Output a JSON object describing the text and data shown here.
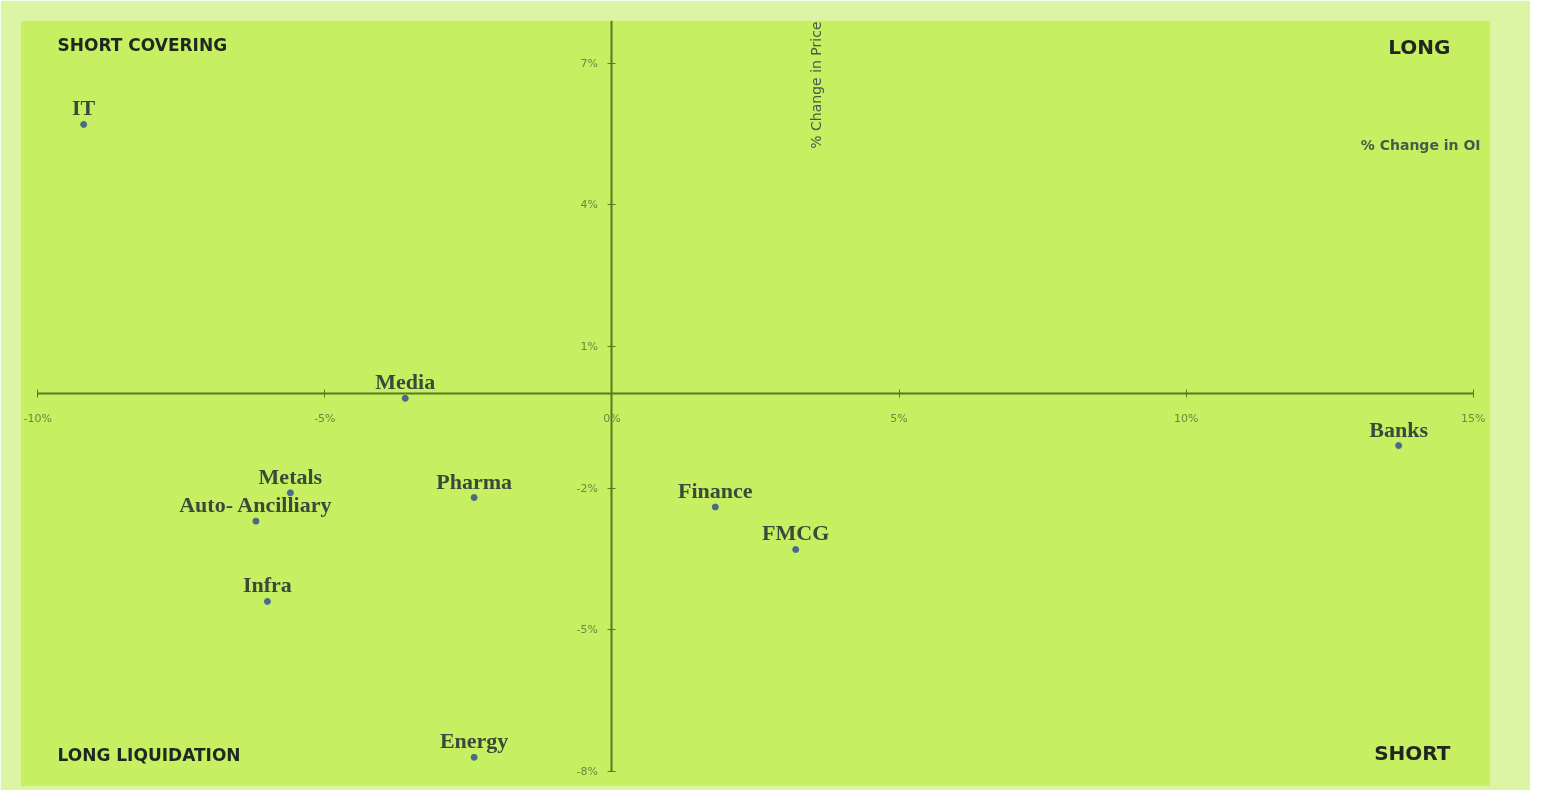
{
  "chart_data": {
    "type": "scatter",
    "xlabel": "% Change in OI",
    "ylabel": "% Change in Price",
    "annotations": [
      "SHORT COVERING",
      "LONG",
      "LONG LIQUIDATION",
      "SHORT"
    ],
    "series": [
      {
        "name": "IT",
        "color": "#4a6a8a",
        "x": [
          -9.2
        ],
        "values": [
          5.7
        ]
      },
      {
        "name": "Media",
        "color": "#4a6a8a",
        "x": [
          -3.6
        ],
        "values": [
          -0.1
        ]
      },
      {
        "name": "Metals",
        "color": "#4a6a8a",
        "x": [
          -5.6
        ],
        "values": [
          -2.1
        ]
      },
      {
        "name": "Pharma",
        "color": "#4a6a8a",
        "x": [
          -2.4
        ],
        "values": [
          -2.2
        ]
      },
      {
        "name": "Auto- Ancilliary",
        "color": "#4a6a8a",
        "x": [
          -6.2
        ],
        "values": [
          -2.7
        ]
      },
      {
        "name": "Infra",
        "color": "#4a6a8a",
        "x": [
          -6.0
        ],
        "values": [
          -4.4
        ]
      },
      {
        "name": "Energy",
        "color": "#4a6a8a",
        "x": [
          -2.4
        ],
        "values": [
          -7.7
        ]
      },
      {
        "name": "Finance",
        "color": "#4a6a8a",
        "x": [
          1.8
        ],
        "values": [
          -2.4
        ]
      },
      {
        "name": "FMCG",
        "color": "#4a6a8a",
        "x": [
          3.2
        ],
        "values": [
          -3.3
        ]
      },
      {
        "name": "Banks",
        "color": "#4a6a8a",
        "x": [
          13.7
        ],
        "values": [
          -1.1
        ]
      }
    ],
    "xlim": [
      -10,
      15
    ],
    "ylim": [
      -8,
      7.9
    ],
    "xticks": [
      {
        "value": -10,
        "label": "-10%"
      },
      {
        "value": -5,
        "label": "-5%"
      },
      {
        "value": 0,
        "label": "0%"
      },
      {
        "value": 5,
        "label": "5%"
      },
      {
        "value": 10,
        "label": "10%"
      },
      {
        "value": 15,
        "label": "15%"
      }
    ],
    "yticks": [
      {
        "value": 7,
        "label": "7%"
      },
      {
        "value": 4,
        "label": "4%"
      },
      {
        "value": 1,
        "label": "1%"
      },
      {
        "value": -2,
        "label": "-2%"
      },
      {
        "value": -5,
        "label": "-5%"
      },
      {
        "value": -8,
        "label": "-8%"
      }
    ],
    "grid": false,
    "marker": "circle"
  }
}
